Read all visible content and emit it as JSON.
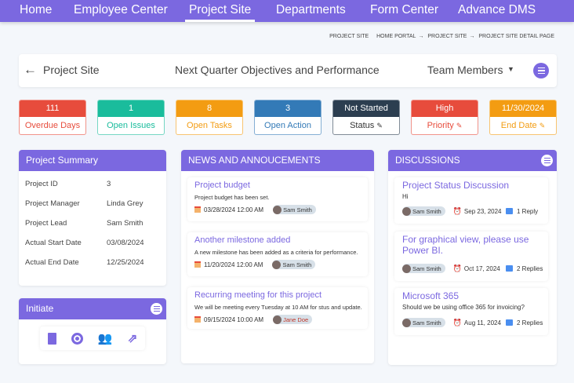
{
  "nav": {
    "items": [
      "Home",
      "Employee Center",
      "Project Site",
      "Departments",
      "Form Center",
      "Advance DMS"
    ],
    "active": "Project Site"
  },
  "breadcrumb": {
    "label": "PROJECT SITE",
    "path": [
      "HOME PORTAL",
      "PROJECT SITE",
      "PROJECT SITE DETAIL PAGE"
    ]
  },
  "header": {
    "back": "Project Site",
    "title": "Next Quarter Objectives and Performance",
    "dropdown": "Team Members"
  },
  "stats": [
    {
      "value": "111",
      "label": "Overdue Days",
      "color": "#e74c3c"
    },
    {
      "value": "1",
      "label": "Open Issues",
      "color": "#1abc9c"
    },
    {
      "value": "8",
      "label": "Open Tasks",
      "color": "#f39c12"
    },
    {
      "value": "3",
      "label": "Open Action",
      "color": "#337ab7"
    },
    {
      "value": "Not Started",
      "label": "Status",
      "color": "#2c3e50",
      "editable": true
    },
    {
      "value": "High",
      "label": "Priority",
      "color": "#e74c3c",
      "editable": true
    },
    {
      "value": "11/30/2024",
      "label": "End Date",
      "color": "#f39c12",
      "editable": true
    }
  ],
  "summary": {
    "title": "Project Summary",
    "rows": [
      {
        "k": "Project ID",
        "v": "3"
      },
      {
        "k": "Project Manager",
        "v": "Linda Grey"
      },
      {
        "k": "Project Lead",
        "v": "Sam Smith"
      },
      {
        "k": "Actual Start Date",
        "v": "03/08/2024"
      },
      {
        "k": "Actual End Date",
        "v": "12/25/2024"
      }
    ]
  },
  "initiate": {
    "title": "Initiate",
    "icons": [
      "document-icon",
      "record-icon",
      "team-icon",
      "share-icon"
    ]
  },
  "news": {
    "title": "NEWS AND ANNOUCEMENTS",
    "items": [
      {
        "title": "Project budget",
        "desc": "Project budget has been set.",
        "date": "03/28/2024 12:00 AM",
        "user": "Sam Smith"
      },
      {
        "title": "Another milestone added",
        "desc": "A new milestone has been added as a criteria for performance.",
        "date": "11/20/2024 12:00 AM",
        "user": "Sam Smith"
      },
      {
        "title": "Recurring meeting for this project",
        "desc": "We will be meeting every Tuesday at 10 AM for stus and update.",
        "date": "09/15/2024 10:00 AM",
        "user": "Jane Doe"
      }
    ]
  },
  "discussions": {
    "title": "DISCUSSIONS",
    "items": [
      {
        "title": "Project Status Discussion",
        "desc": "Hi",
        "user": "Sam Smith",
        "date": "Sep 23, 2024",
        "replies": "1 Reply"
      },
      {
        "title": "For graphical view, please use Power BI.",
        "desc": "",
        "user": "Sam Smith",
        "date": "Oct 17, 2024",
        "replies": "2 Replies"
      },
      {
        "title": "Microsoft 365",
        "desc": "Should we be using office 365 for invoicing?",
        "user": "Sam Smith",
        "date": "Aug 11, 2024",
        "replies": "2 Replies"
      }
    ]
  }
}
